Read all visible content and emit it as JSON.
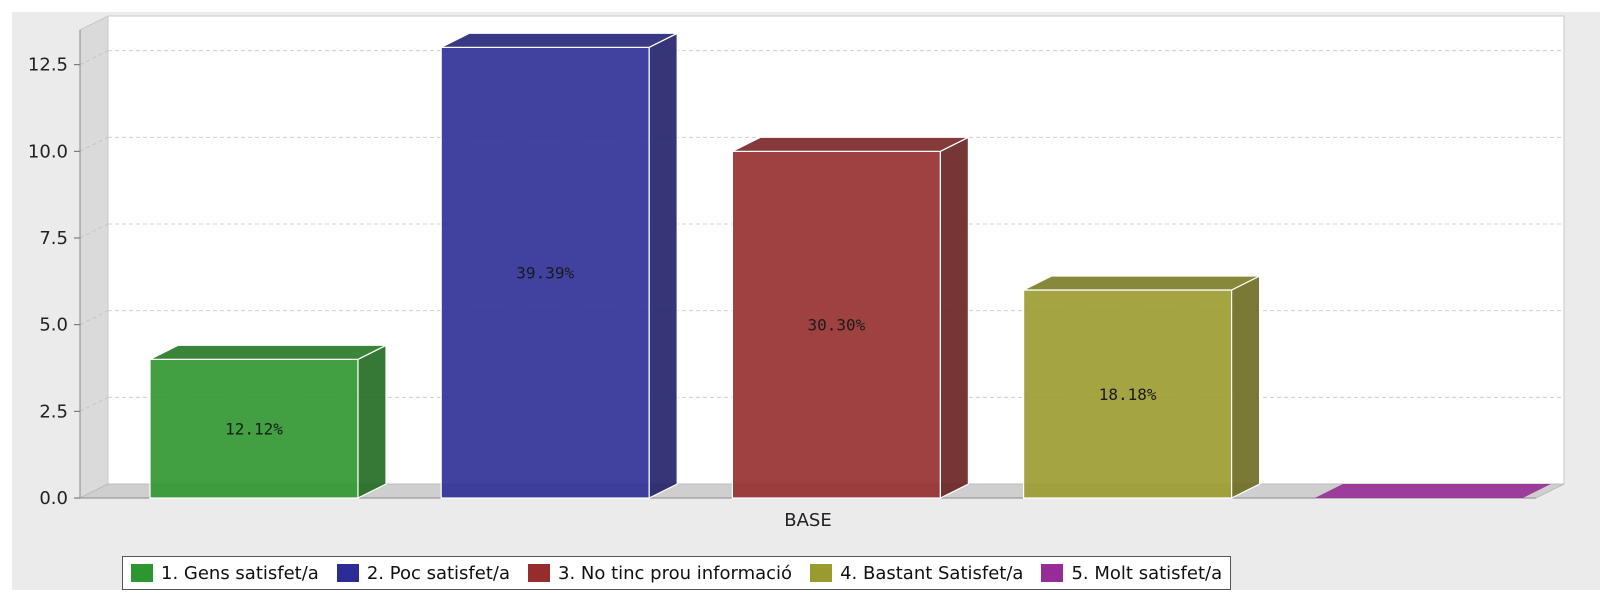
{
  "chart_data": {
    "type": "bar",
    "categories": [
      "BASE"
    ],
    "series": [
      {
        "name": "1. Gens satisfet/a",
        "values": [
          4
        ],
        "label": "12.12%",
        "color": "#2e962e"
      },
      {
        "name": "2. Poc satisfet/a",
        "values": [
          13
        ],
        "label": "39.39%",
        "color": "#2c2c96"
      },
      {
        "name": "3. No tinc prou informació",
        "values": [
          10
        ],
        "label": "30.30%",
        "color": "#962c2c"
      },
      {
        "name": "4. Bastant Satisfet/a",
        "values": [
          6
        ],
        "label": "18.18%",
        "color": "#9a9a2e"
      },
      {
        "name": "5. Molt satisfet/a",
        "values": [
          0
        ],
        "label": "",
        "color": "#962c96"
      }
    ],
    "y_ticks": [
      "0.0",
      "2.5",
      "5.0",
      "7.5",
      "10.0",
      "12.5"
    ],
    "ylim": [
      0,
      13.5
    ],
    "grid": true,
    "legend_position": "bottom",
    "style": "3d"
  }
}
